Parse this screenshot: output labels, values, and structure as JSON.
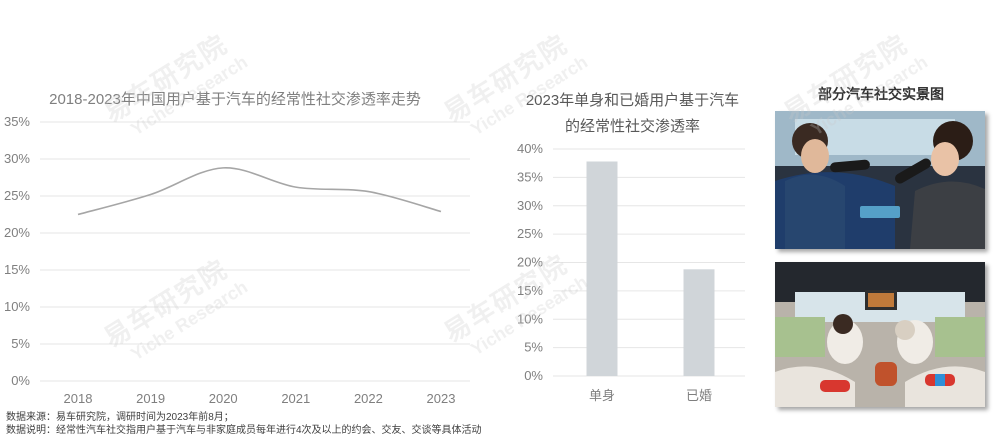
{
  "notes": {
    "source": "数据来源：易车研究院，调研时间为2023年前8月；",
    "definition": "数据说明：经常性汽车社交指用户基于汽车与非家庭成员每年进行4次及以上的约会、交友、交谈等具体活动"
  },
  "watermark": {
    "cn": "易车研究院",
    "en": "Yiche Research"
  },
  "photos": {
    "title": "部分汽车社交实景图",
    "items": [
      {
        "name": "photo-car-karaoke",
        "subject": "two people singing karaoke with microphones inside a car"
      },
      {
        "name": "photo-car-gaming",
        "subject": "passengers playing handheld game controllers inside a car"
      }
    ]
  },
  "colors": {
    "line": "#a6a6a6",
    "bar": "#d0d5d9",
    "grid": "#e6e6e6"
  },
  "chart_data": [
    {
      "type": "line",
      "title": "2018-2023年中国用户基于汽车的经常性社交渗透率走势",
      "x": [
        "2018",
        "2019",
        "2020",
        "2021",
        "2022",
        "2023"
      ],
      "y_ticks": [
        "0%",
        "5%",
        "10%",
        "15%",
        "20%",
        "25%",
        "30%",
        "35%"
      ],
      "ylim": [
        0,
        35
      ],
      "series": [
        {
          "values": [
            22.5,
            25.2,
            28.8,
            26.2,
            25.6,
            22.9
          ]
        }
      ],
      "smooth": true,
      "grid": true
    },
    {
      "type": "bar",
      "title": "2023年单身和已婚用户基于汽车的经常性社交渗透率",
      "categories": [
        "单身",
        "已婚"
      ],
      "values": [
        37.8,
        18.8
      ],
      "y_ticks": [
        "0%",
        "5%",
        "10%",
        "15%",
        "20%",
        "25%",
        "30%",
        "35%",
        "40%"
      ],
      "ylim": [
        0,
        40
      ],
      "grid": true
    }
  ]
}
